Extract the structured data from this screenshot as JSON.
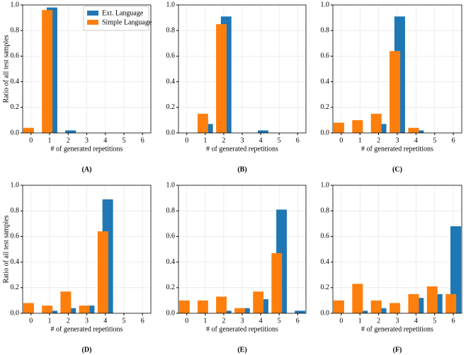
{
  "chart_data": [
    {
      "type": "bar",
      "title": "(A)",
      "xlabel": "# of generated repetitions",
      "ylabel": "Ratio of all test samples",
      "x": [
        0,
        1,
        2,
        3,
        4,
        5,
        6
      ],
      "xlim": [
        -0.45,
        6.45
      ],
      "xticks": [
        0,
        1,
        2,
        3,
        4,
        5,
        6
      ],
      "ylim": [
        0,
        1
      ],
      "yticks": [
        {
          "value": 0,
          "label": "0.0"
        },
        0.2,
        0.4,
        0.6,
        0.8,
        {
          "value": 1,
          "label": "1.0"
        }
      ],
      "grid": true,
      "legend": "upper right",
      "series": [
        {
          "name": "Ext. Language",
          "color": "#1f77b4",
          "values": [
            0,
            0.98,
            0.02,
            0,
            0,
            0,
            0
          ]
        },
        {
          "name": "Simple Language",
          "color": "#ff7f0e",
          "values": [
            0.04,
            0.96,
            0,
            0,
            0,
            0,
            0
          ]
        }
      ]
    },
    {
      "type": "bar",
      "title": "(B)",
      "xlabel": "# of generated repetitions",
      "x": [
        0,
        1,
        2,
        3,
        4,
        5,
        6
      ],
      "xlim": [
        -0.45,
        6.45
      ],
      "xticks": [
        0,
        1,
        2,
        3,
        4,
        5,
        6
      ],
      "ylim": [
        0,
        1
      ],
      "yticks": [
        {
          "value": 0,
          "label": "0.0"
        },
        0.2,
        0.4,
        0.6,
        0.8,
        {
          "value": 1,
          "label": "1.0"
        }
      ],
      "grid": true,
      "series": [
        {
          "color": "#1f77b4",
          "values": [
            0,
            0.07,
            0.91,
            0,
            0.02,
            0,
            0
          ]
        },
        {
          "color": "#ff7f0e",
          "values": [
            0,
            0.15,
            0.85,
            0,
            0,
            0,
            0
          ]
        }
      ]
    },
    {
      "type": "bar",
      "title": "(C)",
      "xlabel": "# of generated repetitions",
      "x": [
        0,
        1,
        2,
        3,
        4,
        5,
        6
      ],
      "xlim": [
        -0.45,
        6.45
      ],
      "xticks": [
        0,
        1,
        2,
        3,
        4,
        5,
        6
      ],
      "ylim": [
        0,
        1
      ],
      "yticks": [
        {
          "value": 0,
          "label": "0.0"
        },
        0.2,
        0.4,
        0.6,
        0.8,
        {
          "value": 1,
          "label": "1.0"
        }
      ],
      "grid": true,
      "series": [
        {
          "color": "#1f77b4",
          "values": [
            0,
            0,
            0.07,
            0.91,
            0.02,
            0,
            0
          ]
        },
        {
          "color": "#ff7f0e",
          "values": [
            0.08,
            0.1,
            0.15,
            0.64,
            0.04,
            0,
            0
          ]
        }
      ]
    },
    {
      "type": "bar",
      "title": "(D)",
      "xlabel": "# of generated repetitions",
      "ylabel": "Ratio of all test samples",
      "x": [
        0,
        1,
        2,
        3,
        4,
        5,
        6
      ],
      "xlim": [
        -0.45,
        6.45
      ],
      "xticks": [
        0,
        1,
        2,
        3,
        4,
        5,
        6
      ],
      "ylim": [
        0,
        1
      ],
      "yticks": [
        {
          "value": 0,
          "label": "0.0"
        },
        0.2,
        0.4,
        0.6,
        0.8,
        {
          "value": 1,
          "label": "1.0"
        }
      ],
      "grid": true,
      "series": [
        {
          "color": "#1f77b4",
          "values": [
            0,
            0.02,
            0.04,
            0.06,
            0.89,
            0,
            0
          ]
        },
        {
          "color": "#ff7f0e",
          "values": [
            0.08,
            0.06,
            0.17,
            0.06,
            0.64,
            0,
            0
          ]
        }
      ]
    },
    {
      "type": "bar",
      "title": "(E)",
      "xlabel": "# of generated repetitions",
      "x": [
        0,
        1,
        2,
        3,
        4,
        5,
        6
      ],
      "xlim": [
        -0.45,
        6.45
      ],
      "xticks": [
        0,
        1,
        2,
        3,
        4,
        5,
        6
      ],
      "ylim": [
        0,
        1
      ],
      "yticks": [
        {
          "value": 0,
          "label": "0.0"
        },
        0.2,
        0.4,
        0.6,
        0.8,
        {
          "value": 1,
          "label": "1.0"
        }
      ],
      "grid": true,
      "series": [
        {
          "color": "#1f77b4",
          "values": [
            0,
            0,
            0.02,
            0.04,
            0.11,
            0.81,
            0.02
          ]
        },
        {
          "color": "#ff7f0e",
          "values": [
            0.1,
            0.1,
            0.13,
            0.04,
            0.17,
            0.47,
            0
          ]
        }
      ]
    },
    {
      "type": "bar",
      "title": "(F)",
      "xlabel": "# of generated repetitions",
      "x": [
        0,
        1,
        2,
        3,
        4,
        5,
        6
      ],
      "xlim": [
        -0.45,
        6.45
      ],
      "xticks": [
        0,
        1,
        2,
        3,
        4,
        5,
        6
      ],
      "ylim": [
        0,
        1
      ],
      "yticks": [
        {
          "value": 0,
          "label": "0.0"
        },
        0.2,
        0.4,
        0.6,
        0.8,
        {
          "value": 1,
          "label": "1.0"
        }
      ],
      "grid": true,
      "series": [
        {
          "color": "#1f77b4",
          "values": [
            0,
            0.02,
            0.04,
            0,
            0.12,
            0.15,
            0.68
          ]
        },
        {
          "color": "#ff7f0e",
          "values": [
            0.1,
            0.23,
            0.1,
            0.08,
            0.15,
            0.21,
            0.15
          ]
        }
      ]
    }
  ]
}
